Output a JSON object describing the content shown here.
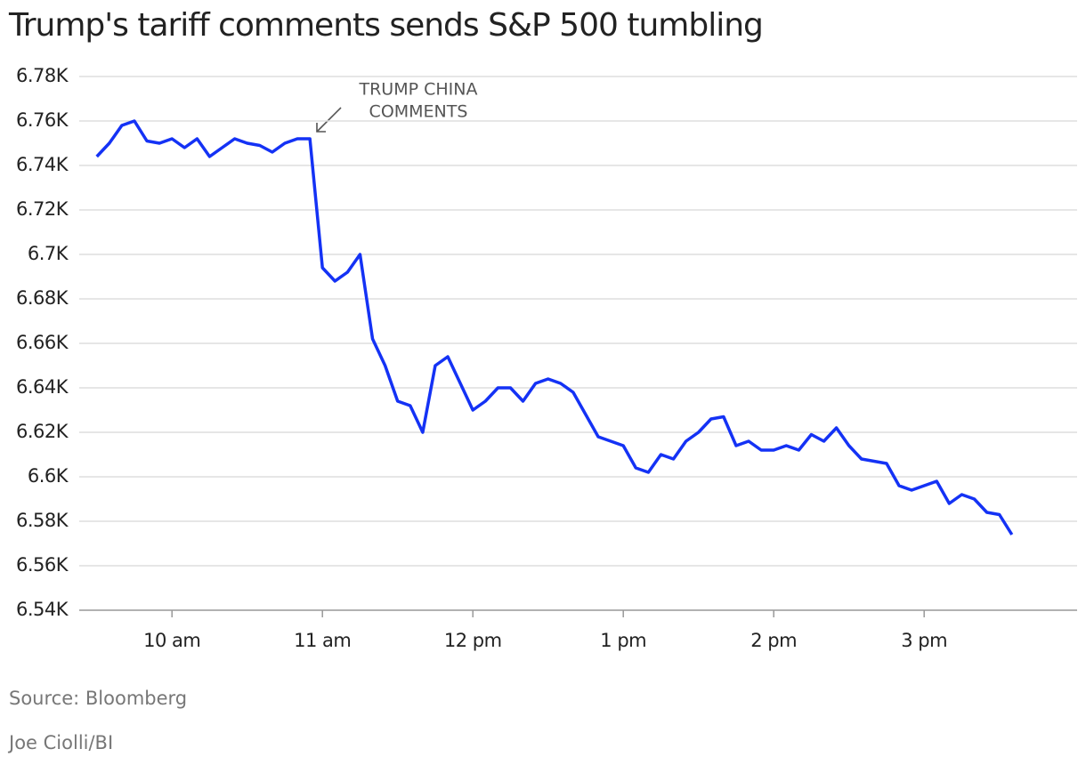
{
  "chart_data": {
    "type": "line",
    "title": "Trump's tariff comments sends S&P 500 tumbling",
    "source": "Source: Bloomberg",
    "credit": "Joe Ciolli/BI",
    "annotation": [
      "TRUMP CHINA",
      "COMMENTS"
    ],
    "x": [
      570,
      575,
      580,
      585,
      590,
      595,
      600,
      605,
      610,
      615,
      620,
      625,
      630,
      635,
      640,
      645,
      650,
      655,
      660,
      665,
      670,
      675,
      680,
      685,
      690,
      695,
      700,
      705,
      710,
      715,
      720,
      725,
      730,
      735,
      740,
      745,
      750,
      755,
      760,
      765,
      770,
      775,
      780,
      785,
      790,
      795,
      800,
      805,
      810,
      815,
      820,
      825,
      830,
      835,
      840,
      845,
      850,
      855,
      860,
      865,
      870,
      875,
      880,
      885,
      890,
      895,
      900,
      905,
      910,
      915,
      920,
      925,
      930,
      935
    ],
    "series": [
      {
        "name": "S&P 500",
        "color": "#1432f5",
        "values": [
          6744,
          6750,
          6758,
          6760,
          6751,
          6750,
          6752,
          6748,
          6752,
          6744,
          6748,
          6752,
          6750,
          6749,
          6746,
          6750,
          6752,
          6752,
          6694,
          6688,
          6692,
          6700,
          6662,
          6650,
          6634,
          6632,
          6620,
          6650,
          6654,
          6642,
          6630,
          6634,
          6640,
          6640,
          6634,
          6642,
          6644,
          6642,
          6638,
          6628,
          6618,
          6616,
          6614,
          6604,
          6602,
          6610,
          6608,
          6616,
          6620,
          6626,
          6627,
          6614,
          6616,
          6612,
          6612,
          6614,
          6612,
          6619,
          6616,
          6622,
          6614,
          6608,
          6607,
          6606,
          6596,
          6594,
          6596,
          6598,
          6588,
          6592,
          6590,
          6584,
          6583,
          6574
        ]
      }
    ],
    "xlim": [
      563,
      961
    ],
    "xticks": [
      {
        "value": 600,
        "label": "10 am"
      },
      {
        "value": 660,
        "label": "11 am"
      },
      {
        "value": 720,
        "label": "12 pm"
      },
      {
        "value": 780,
        "label": "1 pm"
      },
      {
        "value": 840,
        "label": "2 pm"
      },
      {
        "value": 900,
        "label": "3 pm"
      }
    ],
    "ylim": [
      6540,
      6780
    ],
    "yticks": [
      {
        "value": 6540,
        "label": "6.54K"
      },
      {
        "value": 6560,
        "label": "6.56K"
      },
      {
        "value": 6580,
        "label": "6.58K"
      },
      {
        "value": 6600,
        "label": "6.6K"
      },
      {
        "value": 6620,
        "label": "6.62K"
      },
      {
        "value": 6640,
        "label": "6.64K"
      },
      {
        "value": 6660,
        "label": "6.66K"
      },
      {
        "value": 6680,
        "label": "6.68K"
      },
      {
        "value": 6700,
        "label": "6.7K"
      },
      {
        "value": 6720,
        "label": "6.72K"
      },
      {
        "value": 6740,
        "label": "6.74K"
      },
      {
        "value": 6760,
        "label": "6.76K"
      },
      {
        "value": 6780,
        "label": "6.78K"
      }
    ],
    "grid": true
  }
}
